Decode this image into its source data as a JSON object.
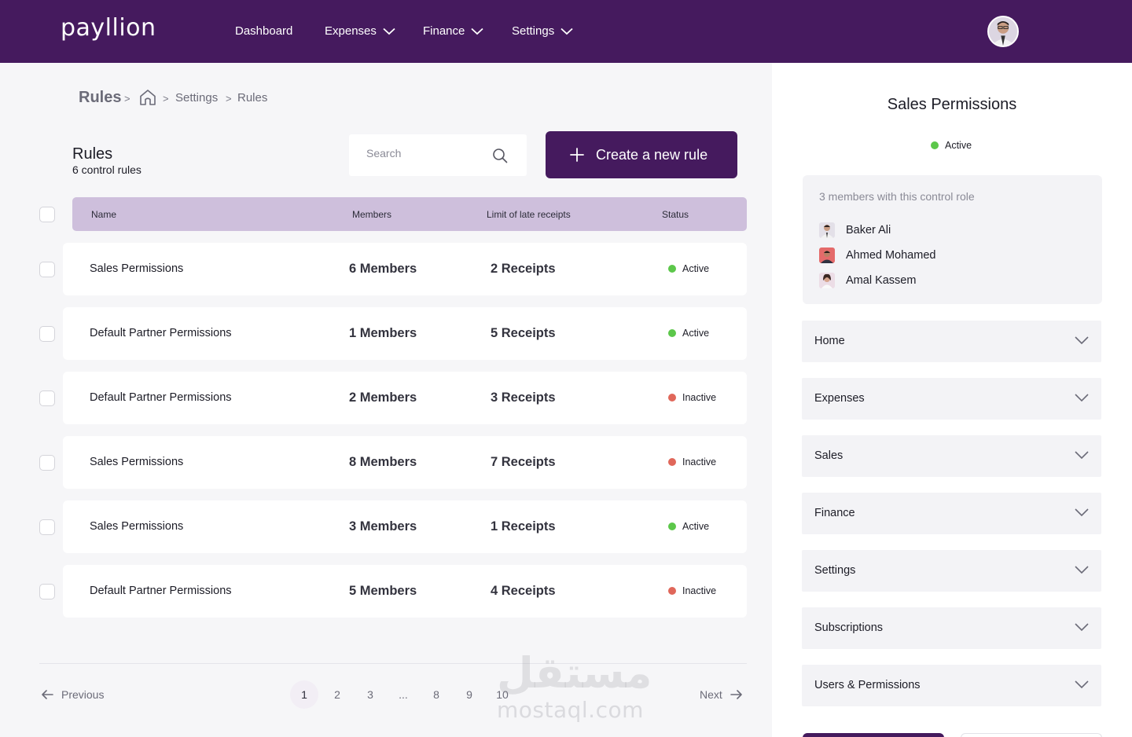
{
  "app": {
    "logo": "payllion"
  },
  "nav": {
    "items": [
      {
        "label": "Dashboard",
        "has_dropdown": false
      },
      {
        "label": "Expenses",
        "has_dropdown": true
      },
      {
        "label": "Finance",
        "has_dropdown": true
      },
      {
        "label": "Settings",
        "has_dropdown": true
      }
    ]
  },
  "breadcrumb": {
    "title": "Rules",
    "sep": ">",
    "items": [
      "Settings",
      "Rules"
    ]
  },
  "rules": {
    "heading": "Rules",
    "subheading": "6 control rules"
  },
  "search": {
    "placeholder": "Search"
  },
  "create_button": {
    "label": "Create a new rule"
  },
  "table": {
    "columns": [
      "Name",
      "Members",
      "Limit of late receipts",
      "Status"
    ],
    "rows": [
      {
        "name": "Sales Permissions",
        "members": "6 Members",
        "receipts": "2 Receipts",
        "status": "Active"
      },
      {
        "name": "Default Partner Permissions",
        "members": "1 Members",
        "receipts": "5 Receipts",
        "status": "Active"
      },
      {
        "name": "Default Partner Permissions",
        "members": "2 Members",
        "receipts": "3 Receipts",
        "status": "Inactive"
      },
      {
        "name": "Sales Permissions",
        "members": "8 Members",
        "receipts": "7 Receipts",
        "status": "Inactive"
      },
      {
        "name": "Sales Permissions",
        "members": "3 Members",
        "receipts": "1 Receipts",
        "status": "Active"
      },
      {
        "name": "Default Partner Permissions",
        "members": "5 Members",
        "receipts": "4 Receipts",
        "status": "Inactive"
      }
    ]
  },
  "pagination": {
    "previous": "Previous",
    "next": "Next",
    "pages": [
      "1",
      "2",
      "3",
      "...",
      "8",
      "9",
      "10"
    ],
    "current": "1"
  },
  "watermark": {
    "arabic": "مستقل",
    "latin": "mostaql.com"
  },
  "panel": {
    "title": "Sales Permissions",
    "status": "Active",
    "members_caption": "3 members with this control role",
    "members": [
      "Baker Ali",
      "Ahmed Mohamed",
      "Amal Kassem"
    ],
    "sections": [
      "Home",
      "Expenses",
      "Sales",
      "Finance",
      "Settings",
      "Subscriptions",
      "Users & Permissions"
    ]
  },
  "colors": {
    "brand": "#451a5e",
    "header_row": "#cebfdc",
    "active": "#5cc74a",
    "inactive": "#e0675a"
  }
}
